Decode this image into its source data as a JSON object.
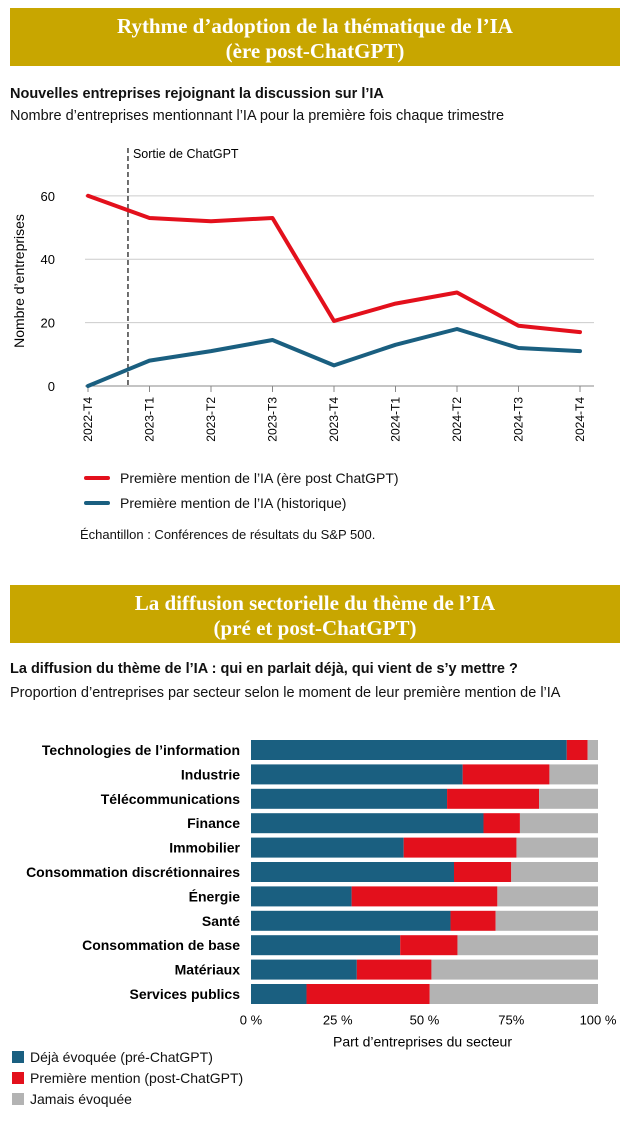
{
  "section1": {
    "banner_line1": "Rythme d’adoption de la thématique de l’IA",
    "banner_line2": "(ère post-ChatGPT)",
    "title": "Nouvelles entreprises rejoignant la discussion sur l’IA",
    "subtitle": "Nombre d’entreprises mentionnant l’IA pour la première fois chaque trimestre",
    "legend_red": "Première mention de l’IA (ère post ChatGPT)",
    "legend_blue": "Première mention de l’IA (historique)",
    "sample_note": "Échantillon : Conférences de résultats du S&P 500."
  },
  "section2": {
    "banner_line1": "La diffusion sectorielle du thème de l’IA",
    "banner_line2": "(pré et post-ChatGPT)",
    "title": "La diffusion du thème de l’IA : qui en parlait déjà, qui vient de s’y mettre ?",
    "subtitle": "Proportion d’entreprises par secteur selon le moment de leur première mention de l’IA",
    "legend": [
      "Déjà évoquée (pré-ChatGPT)",
      "Première mention (post-ChatGPT)",
      "Jamais évoquée"
    ]
  },
  "colors": {
    "banner": "#c8a600",
    "red": "#e3101c",
    "blue": "#1a5f80",
    "gray": "#b3b3b3"
  },
  "chart_data": [
    {
      "type": "line",
      "ylabel": "Nombre d’entreprises",
      "xlabel": "",
      "ylim": [
        0,
        65
      ],
      "yticks": [
        0,
        20,
        40,
        60
      ],
      "grid": true,
      "categories": [
        "2022-T4",
        "2023-T1",
        "2023-T2",
        "2023-T3",
        "2023-T4",
        "2024-T1",
        "2024-T2",
        "2024-T3",
        "2024-T4"
      ],
      "annotation": {
        "label": "Sortie de ChatGPT",
        "position_between": [
          "2022-T4",
          "2023-T1"
        ],
        "at": 0.65
      },
      "series": [
        {
          "name": "Première mention de l’IA (ère post ChatGPT)",
          "color": "#e3101c",
          "values": [
            60,
            53,
            52,
            53,
            20.5,
            26,
            29.5,
            19,
            17
          ]
        },
        {
          "name": "Première mention de l’IA (historique)",
          "color": "#1a5f80",
          "values": [
            0,
            8,
            11,
            14.5,
            6.5,
            13,
            18,
            12,
            11
          ]
        }
      ]
    },
    {
      "type": "bar",
      "orientation": "horizontal",
      "stacked": true,
      "xlabel": "Part d’entreprises du secteur",
      "xlim": [
        0,
        100
      ],
      "xticks": [
        "0 %",
        "25 %",
        "50 %",
        "75%",
        "100 %"
      ],
      "categories": [
        "Technologies de l’information",
        "Industrie",
        "Télécommunications",
        "Finance",
        "Immobilier",
        "Consommation discrétionnaires",
        "Énergie",
        "Santé",
        "Consommation de base",
        "Matériaux",
        "Services publics"
      ],
      "series": [
        {
          "name": "Déjà évoquée (pré-ChatGPT)",
          "color": "#1a5f80",
          "values": [
            91,
            61,
            56.5,
            67,
            44,
            58.5,
            29,
            57.5,
            43,
            30.5,
            16
          ]
        },
        {
          "name": "Première mention (post-ChatGPT)",
          "color": "#e3101c",
          "values": [
            6,
            25,
            26.5,
            10.5,
            32.5,
            16.5,
            42,
            13,
            16.5,
            21.5,
            35.5
          ]
        },
        {
          "name": "Jamais évoquée",
          "color": "#b3b3b3",
          "values": [
            3,
            14,
            17,
            22.5,
            23.5,
            25,
            29,
            29.5,
            40.5,
            48,
            48.5
          ]
        }
      ]
    }
  ]
}
